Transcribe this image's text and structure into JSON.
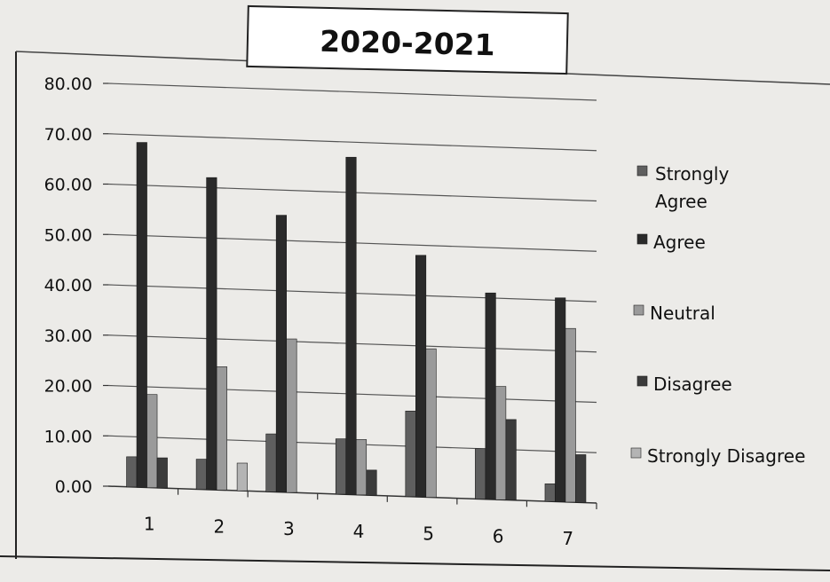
{
  "chart_data": {
    "type": "bar",
    "title": "2020-2021",
    "xlabel": "",
    "ylabel": "",
    "categories": [
      "1",
      "2",
      "3",
      "4",
      "5",
      "6",
      "7"
    ],
    "y_ticks": [
      "0.00",
      "10.00",
      "20.00",
      "30.00",
      "40.00",
      "50.00",
      "60.00",
      "70.00",
      "80.00"
    ],
    "ylim": [
      0,
      80
    ],
    "grid": true,
    "legend_position": "right",
    "series": [
      {
        "name": "Strongly Agree",
        "color": "#5f5f5f",
        "values": [
          6,
          6,
          11.5,
          11,
          17,
          10,
          3.5
        ]
      },
      {
        "name": "Agree",
        "color": "#2a2a2a",
        "values": [
          68.5,
          62,
          55,
          67,
          48,
          41,
          40.5
        ]
      },
      {
        "name": "Neutral",
        "color": "#9a9a9a",
        "values": [
          18.5,
          24.5,
          30.5,
          11,
          29.5,
          22.5,
          34.5
        ]
      },
      {
        "name": "Disagree",
        "color": "#3b3b3b",
        "values": [
          6,
          0,
          0,
          5,
          0,
          16,
          9.5
        ]
      },
      {
        "name": "Strongly Disagree",
        "color": "#b4b4b4",
        "values": [
          0,
          5.5,
          0,
          0,
          0,
          0,
          0
        ]
      }
    ]
  }
}
